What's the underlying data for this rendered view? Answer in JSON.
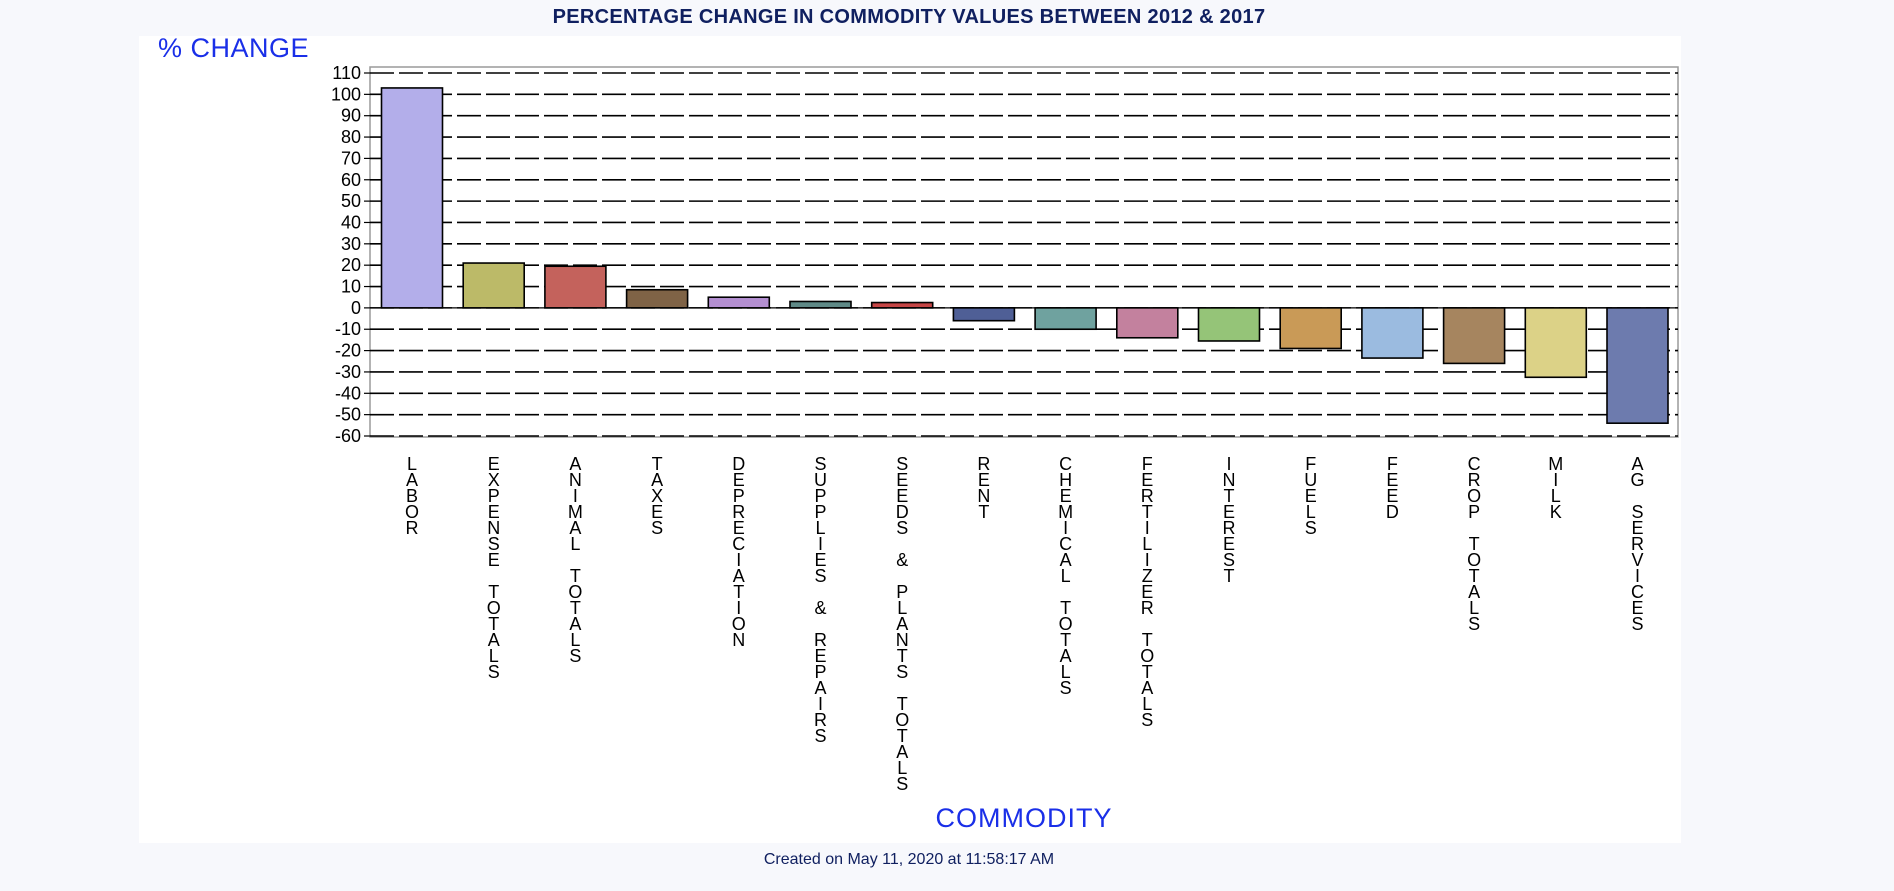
{
  "chart_data": {
    "type": "bar",
    "title": "PERCENTAGE CHANGE IN COMMODITY VALUES BETWEEN 2012 & 2017",
    "ylabel": "% CHANGE",
    "xlabel": "COMMODITY",
    "ylim": [
      -60,
      110
    ],
    "yticks": [
      110,
      100,
      90,
      80,
      70,
      60,
      50,
      40,
      30,
      20,
      10,
      0,
      -10,
      -20,
      -30,
      -40,
      -50,
      -60
    ],
    "grid": true,
    "categories": [
      "LABOR",
      "EXPENSE TOTALS",
      "ANIMAL TOTALS",
      "TAXES",
      "DEPRECIATION",
      "SUPPLIES & REPAIRS",
      "SEEDS & PLANTS TOTALS",
      "RENT",
      "CHEMICAL TOTALS",
      "FERTILIZER TOTALS",
      "INTEREST",
      "FUELS",
      "FEED",
      "CROP TOTALS",
      "MILK",
      "AG SERVICES"
    ],
    "values": [
      103,
      21,
      19.5,
      8.5,
      5,
      3,
      2.5,
      -6,
      -10,
      -14,
      -15.5,
      -19,
      -23.5,
      -26,
      -32.5,
      -54
    ],
    "colors": [
      "#b3aeea",
      "#bcba68",
      "#c4625c",
      "#7f6346",
      "#b48fd1",
      "#5f8a87",
      "#c54545",
      "#4f5f96",
      "#6fa29f",
      "#c3819e",
      "#95c478",
      "#c99a57",
      "#9bbbe0",
      "#a6855f",
      "#dcd287",
      "#6d7bae"
    ]
  },
  "footnote": "Created on May 11, 2020 at 11:58:17 AM"
}
